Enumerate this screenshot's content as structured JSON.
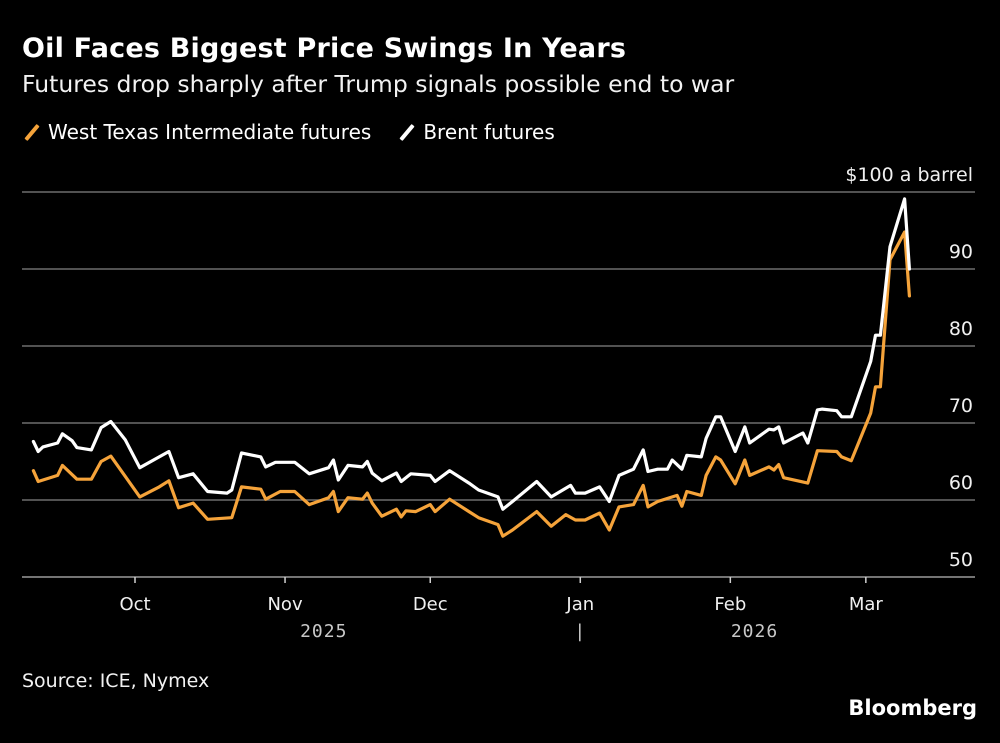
{
  "header": {
    "title": "Oil Faces Biggest Price Swings In Years",
    "subtitle": "Futures drop sharply after Trump signals possible end to war"
  },
  "footer": {
    "source": "Source: ICE, Nymex",
    "brand": "Bloomberg"
  },
  "chart_data": {
    "type": "line",
    "title": "Oil Faces Biggest Price Swings In Years",
    "subtitle": "Futures drop sharply after Trump signals possible end to war",
    "legend_position": "top-left",
    "grid": true,
    "ylim": [
      50,
      100
    ],
    "yticks": [
      50,
      60,
      70,
      80,
      90
    ],
    "y_top_label": "$100 a barrel",
    "xlim": [
      "2025-09-10",
      "2026-03-10"
    ],
    "xticks": [
      {
        "date": "2025-10-01",
        "label": "Oct"
      },
      {
        "date": "2025-11-01",
        "label": "Nov"
      },
      {
        "date": "2025-12-01",
        "label": "Dec"
      },
      {
        "date": "2026-01-01",
        "label": "Jan"
      },
      {
        "date": "2026-02-01",
        "label": "Feb"
      },
      {
        "date": "2026-03-01",
        "label": "Mar"
      }
    ],
    "year_labels": [
      {
        "date": "2025-11-09",
        "label": "2025"
      },
      {
        "date": "2026-01-01",
        "label": "|"
      },
      {
        "date": "2026-02-06",
        "label": "2026"
      }
    ],
    "series": [
      {
        "name": "West Texas Intermediate futures",
        "color": "#f5a33a",
        "points": [
          [
            "2025-09-10",
            63.8
          ],
          [
            "2025-09-11",
            62.4
          ],
          [
            "2025-09-15",
            63.2
          ],
          [
            "2025-09-16",
            64.5
          ],
          [
            "2025-09-19",
            62.7
          ],
          [
            "2025-09-22",
            62.7
          ],
          [
            "2025-09-24",
            65.0
          ],
          [
            "2025-09-26",
            65.7
          ],
          [
            "2025-10-02",
            60.4
          ],
          [
            "2025-10-06",
            61.7
          ],
          [
            "2025-10-08",
            62.5
          ],
          [
            "2025-10-10",
            59.0
          ],
          [
            "2025-10-13",
            59.6
          ],
          [
            "2025-10-16",
            57.5
          ],
          [
            "2025-10-21",
            57.7
          ],
          [
            "2025-10-23",
            61.7
          ],
          [
            "2025-10-27",
            61.4
          ],
          [
            "2025-10-28",
            60.1
          ],
          [
            "2025-10-31",
            61.1
          ],
          [
            "2025-11-03",
            61.1
          ],
          [
            "2025-11-06",
            59.4
          ],
          [
            "2025-11-10",
            60.3
          ],
          [
            "2025-11-11",
            61.1
          ],
          [
            "2025-11-12",
            58.5
          ],
          [
            "2025-11-14",
            60.3
          ],
          [
            "2025-11-17",
            60.1
          ],
          [
            "2025-11-18",
            60.9
          ],
          [
            "2025-11-19",
            59.6
          ],
          [
            "2025-11-21",
            57.9
          ],
          [
            "2025-11-24",
            58.8
          ],
          [
            "2025-11-25",
            57.8
          ],
          [
            "2025-11-26",
            58.6
          ],
          [
            "2025-11-28",
            58.5
          ],
          [
            "2025-12-01",
            59.4
          ],
          [
            "2025-12-02",
            58.5
          ],
          [
            "2025-12-05",
            60.1
          ],
          [
            "2025-12-09",
            58.5
          ],
          [
            "2025-12-11",
            57.7
          ],
          [
            "2025-12-15",
            56.8
          ],
          [
            "2025-12-16",
            55.3
          ],
          [
            "2025-12-18",
            56.1
          ],
          [
            "2025-12-23",
            58.5
          ],
          [
            "2025-12-26",
            56.6
          ],
          [
            "2025-12-29",
            58.1
          ],
          [
            "2025-12-31",
            57.4
          ],
          [
            "2026-01-02",
            57.4
          ],
          [
            "2026-01-05",
            58.3
          ],
          [
            "2026-01-07",
            56.1
          ],
          [
            "2026-01-09",
            59.1
          ],
          [
            "2026-01-12",
            59.4
          ],
          [
            "2026-01-14",
            61.9
          ],
          [
            "2026-01-15",
            59.1
          ],
          [
            "2026-01-17",
            59.8
          ],
          [
            "2026-01-21",
            60.6
          ],
          [
            "2026-01-22",
            59.2
          ],
          [
            "2026-01-23",
            61.1
          ],
          [
            "2026-01-26",
            60.6
          ],
          [
            "2026-01-27",
            63.2
          ],
          [
            "2026-01-29",
            65.6
          ],
          [
            "2026-01-30",
            65.2
          ],
          [
            "2026-02-02",
            62.1
          ],
          [
            "2026-02-04",
            65.2
          ],
          [
            "2026-02-05",
            63.2
          ],
          [
            "2026-02-09",
            64.3
          ],
          [
            "2026-02-10",
            63.9
          ],
          [
            "2026-02-11",
            64.6
          ],
          [
            "2026-02-12",
            62.9
          ],
          [
            "2026-02-17",
            62.2
          ],
          [
            "2026-02-19",
            66.4
          ],
          [
            "2026-02-23",
            66.3
          ],
          [
            "2026-02-24",
            65.6
          ],
          [
            "2026-02-26",
            65.1
          ],
          [
            "2026-03-02",
            71.3
          ],
          [
            "2026-03-03",
            74.7
          ],
          [
            "2026-03-04",
            74.7
          ],
          [
            "2026-03-06",
            91.2
          ],
          [
            "2026-03-09",
            94.8
          ],
          [
            "2026-03-10",
            86.5
          ]
        ]
      },
      {
        "name": "Brent futures",
        "color": "#ffffff",
        "points": [
          [
            "2025-09-10",
            67.6
          ],
          [
            "2025-09-11",
            66.3
          ],
          [
            "2025-09-12",
            66.9
          ],
          [
            "2025-09-15",
            67.4
          ],
          [
            "2025-09-16",
            68.6
          ],
          [
            "2025-09-18",
            67.7
          ],
          [
            "2025-09-19",
            66.8
          ],
          [
            "2025-09-22",
            66.5
          ],
          [
            "2025-09-24",
            69.4
          ],
          [
            "2025-09-26",
            70.2
          ],
          [
            "2025-09-29",
            67.8
          ],
          [
            "2025-10-02",
            64.2
          ],
          [
            "2025-10-06",
            65.6
          ],
          [
            "2025-10-08",
            66.3
          ],
          [
            "2025-10-10",
            62.9
          ],
          [
            "2025-10-13",
            63.4
          ],
          [
            "2025-10-16",
            61.1
          ],
          [
            "2025-10-20",
            60.9
          ],
          [
            "2025-10-21",
            61.3
          ],
          [
            "2025-10-23",
            66.1
          ],
          [
            "2025-10-27",
            65.6
          ],
          [
            "2025-10-28",
            64.3
          ],
          [
            "2025-10-30",
            64.9
          ],
          [
            "2025-11-03",
            64.9
          ],
          [
            "2025-11-06",
            63.4
          ],
          [
            "2025-11-10",
            64.2
          ],
          [
            "2025-11-11",
            65.2
          ],
          [
            "2025-11-12",
            62.6
          ],
          [
            "2025-11-14",
            64.5
          ],
          [
            "2025-11-17",
            64.3
          ],
          [
            "2025-11-18",
            65.0
          ],
          [
            "2025-11-19",
            63.5
          ],
          [
            "2025-11-21",
            62.5
          ],
          [
            "2025-11-24",
            63.5
          ],
          [
            "2025-11-25",
            62.4
          ],
          [
            "2025-11-27",
            63.4
          ],
          [
            "2025-12-01",
            63.2
          ],
          [
            "2025-12-02",
            62.4
          ],
          [
            "2025-12-05",
            63.8
          ],
          [
            "2025-12-09",
            62.2
          ],
          [
            "2025-12-11",
            61.3
          ],
          [
            "2025-12-15",
            60.4
          ],
          [
            "2025-12-16",
            58.8
          ],
          [
            "2025-12-18",
            59.8
          ],
          [
            "2025-12-23",
            62.4
          ],
          [
            "2025-12-26",
            60.4
          ],
          [
            "2025-12-30",
            61.9
          ],
          [
            "2025-12-31",
            60.9
          ],
          [
            "2026-01-02",
            60.9
          ],
          [
            "2026-01-05",
            61.7
          ],
          [
            "2026-01-07",
            59.8
          ],
          [
            "2026-01-09",
            63.2
          ],
          [
            "2026-01-12",
            64.0
          ],
          [
            "2026-01-14",
            66.5
          ],
          [
            "2026-01-15",
            63.7
          ],
          [
            "2026-01-17",
            64.0
          ],
          [
            "2026-01-19",
            64.0
          ],
          [
            "2026-01-20",
            65.2
          ],
          [
            "2026-01-22",
            64.0
          ],
          [
            "2026-01-23",
            65.8
          ],
          [
            "2026-01-26",
            65.6
          ],
          [
            "2026-01-27",
            68.0
          ],
          [
            "2026-01-29",
            70.8
          ],
          [
            "2026-01-30",
            70.8
          ],
          [
            "2026-02-02",
            66.3
          ],
          [
            "2026-02-04",
            69.5
          ],
          [
            "2026-02-05",
            67.4
          ],
          [
            "2026-02-09",
            69.2
          ],
          [
            "2026-02-10",
            69.1
          ],
          [
            "2026-02-11",
            69.5
          ],
          [
            "2026-02-12",
            67.4
          ],
          [
            "2026-02-16",
            68.7
          ],
          [
            "2026-02-17",
            67.4
          ],
          [
            "2026-02-19",
            71.7
          ],
          [
            "2026-02-20",
            71.8
          ],
          [
            "2026-02-23",
            71.6
          ],
          [
            "2026-02-24",
            70.8
          ],
          [
            "2026-02-26",
            70.8
          ],
          [
            "2026-03-02",
            78.0
          ],
          [
            "2026-03-03",
            81.4
          ],
          [
            "2026-03-04",
            81.4
          ],
          [
            "2026-03-06",
            92.9
          ],
          [
            "2026-03-09",
            99.1
          ],
          [
            "2026-03-10",
            90.0
          ]
        ]
      }
    ]
  }
}
